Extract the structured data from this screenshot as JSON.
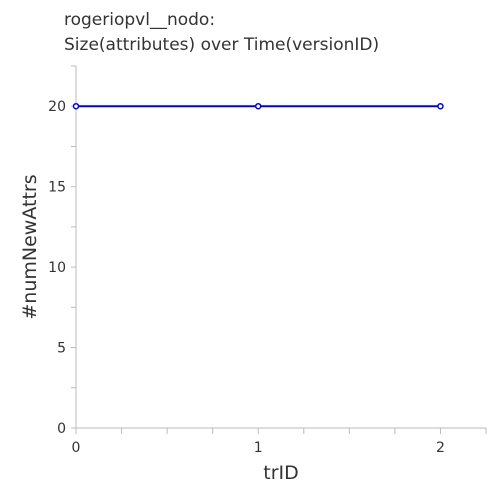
{
  "chart_data": {
    "type": "line",
    "title": [
      "rogeriopvl__nodo:",
      "Size(attributes) over Time(versionID)"
    ],
    "xlabel": "trID",
    "ylabel": "#numNewAttrs",
    "x": [
      0,
      1,
      2
    ],
    "x_ticks": [
      "0",
      "1",
      "2"
    ],
    "y_ticks": [
      "0",
      "5",
      "10",
      "15",
      "20"
    ],
    "xlim": [
      0,
      2.25
    ],
    "ylim": [
      0,
      22.5
    ],
    "grid": false,
    "series": [
      {
        "values": [
          20,
          20,
          20
        ],
        "color": "#0000dd"
      }
    ]
  }
}
